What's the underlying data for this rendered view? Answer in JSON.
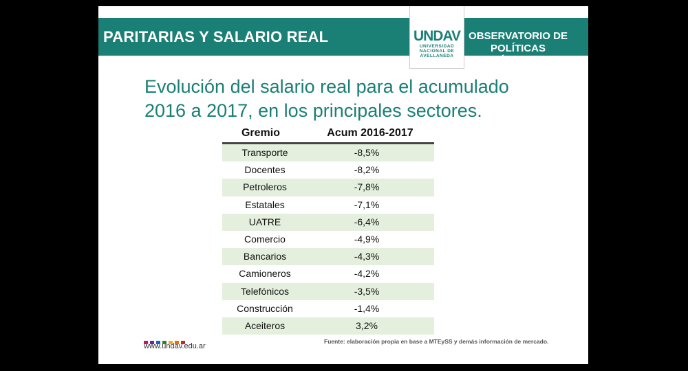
{
  "header": {
    "title": "PARITARIAS Y SALARIO REAL",
    "logo": {
      "mark": "UNDAV",
      "line1": "UNIVERSIDAD",
      "line2": "NACIONAL DE",
      "line3": "AVELLANEDA"
    },
    "observatorio_line1": "OBSERVATORIO DE",
    "observatorio_line2": "POLÍTICAS PÚBLICAS"
  },
  "subtitle_line1": "Evolución del salario real para el acumulado",
  "subtitle_line2": "2016 a 2017, en los principales sectores.",
  "table": {
    "headers": [
      "Gremio",
      "Acum 2016-2017"
    ],
    "rows": [
      [
        "Transporte",
        "-8,5%"
      ],
      [
        "Docentes",
        "-8,2%"
      ],
      [
        "Petroleros",
        "-7,8%"
      ],
      [
        "Estatales",
        "-7,1%"
      ],
      [
        "UATRE",
        "-6,4%"
      ],
      [
        "Comercio",
        "-4,9%"
      ],
      [
        "Bancarios",
        "-4,3%"
      ],
      [
        "Camioneros",
        "-4,2%"
      ],
      [
        "Telefónicos",
        "-3,5%"
      ],
      [
        "Construcción",
        "-1,4%"
      ],
      [
        "Aceiteros",
        "3,2%"
      ]
    ]
  },
  "footer": {
    "dot_colors": [
      "#c2185b",
      "#7b1fa2",
      "#1565c0",
      "#2e7d32",
      "#f9a825",
      "#ef6c00",
      "#c62828"
    ],
    "url": "www.undav.edu.ar",
    "source": "Fuente: elaboración propia en base a MTEySS y demás información de mercado."
  },
  "colors": {
    "accent": "#1a7f75",
    "stripe": "#e4f0dd"
  }
}
